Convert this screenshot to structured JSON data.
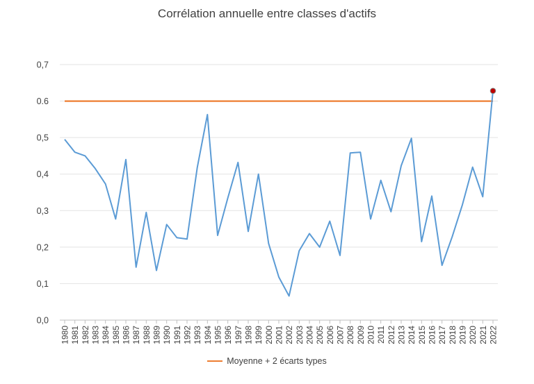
{
  "chart_data": {
    "type": "line",
    "title": "Corrélation annuelle entre classes d'actifs",
    "xlabel": "",
    "ylabel": "",
    "ylim": [
      0,
      0.7
    ],
    "y_ticks": [
      "0,0",
      "0,1",
      "0,2",
      "0,3",
      "0,4",
      "0,5",
      "0.6",
      "0,7"
    ],
    "x": [
      1980,
      1981,
      1982,
      1983,
      1984,
      1985,
      1986,
      1987,
      1988,
      1989,
      1990,
      1991,
      1992,
      1993,
      1994,
      1995,
      1996,
      1997,
      1998,
      1999,
      2000,
      2001,
      2002,
      2003,
      2004,
      2005,
      2006,
      2007,
      2008,
      2009,
      2010,
      2011,
      2012,
      2013,
      2014,
      2015,
      2016,
      2017,
      2018,
      2019,
      2020,
      2021,
      2022
    ],
    "series": [
      {
        "values": [
          0.495,
          0.46,
          0.45,
          0.415,
          0.373,
          0.277,
          0.44,
          0.145,
          0.295,
          0.136,
          0.262,
          0.226,
          0.222,
          0.418,
          0.563,
          0.232,
          0.335,
          0.432,
          0.243,
          0.4,
          0.21,
          0.118,
          0.066,
          0.19,
          0.237,
          0.2,
          0.271,
          0.177,
          0.458,
          0.46,
          0.277,
          0.383,
          0.297,
          0.423,
          0.498,
          0.215,
          0.34,
          0.15,
          0.228,
          0.316,
          0.419,
          0.338,
          0.628
        ],
        "color": "#5B9BD5"
      },
      {
        "name": "Moyenne + 2 écarts types",
        "values": [
          0.6,
          0.6,
          0.6,
          0.6,
          0.6,
          0.6,
          0.6,
          0.6,
          0.6,
          0.6,
          0.6,
          0.6,
          0.6,
          0.6,
          0.6,
          0.6,
          0.6,
          0.6,
          0.6,
          0.6,
          0.6,
          0.6,
          0.6,
          0.6,
          0.6,
          0.6,
          0.6,
          0.6,
          0.6,
          0.6,
          0.6,
          0.6,
          0.6,
          0.6,
          0.6,
          0.6,
          0.6,
          0.6,
          0.6,
          0.6,
          0.6,
          0.6,
          0.6
        ],
        "color": "#ED7D31"
      }
    ],
    "highlight": {
      "x": 2022,
      "y": 0.628,
      "color": "#C00000"
    },
    "grid": true,
    "legend": "bottom"
  }
}
